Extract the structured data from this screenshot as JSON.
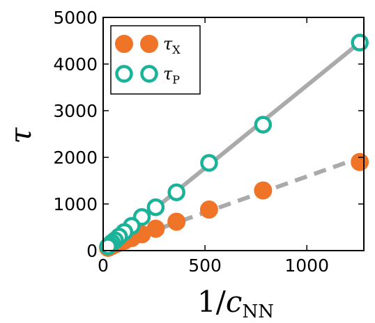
{
  "chart_data": {
    "type": "scatter",
    "title": "",
    "xlabel": {
      "main": "1/",
      "var": "c",
      "sub": "NN"
    },
    "ylabel": "τ",
    "xlim": [
      0,
      1280
    ],
    "ylim": [
      0,
      5000
    ],
    "xticks": [
      0,
      500,
      1000
    ],
    "yticks": [
      0,
      1000,
      2000,
      3000,
      4000,
      5000
    ],
    "grid": false,
    "legend_placement": "top-left",
    "series": [
      {
        "name": "τX",
        "label_main": "τ",
        "label_sub": "X",
        "marker": "filled-circle",
        "color": "#f07428",
        "x": [
          1260,
          785,
          520,
          360,
          258,
          190,
          140,
          104,
          78,
          58,
          43,
          32,
          24
        ],
        "y": [
          1900,
          1290,
          880,
          620,
          470,
          350,
          270,
          210,
          165,
          130,
          100,
          80,
          60
        ],
        "fit": {
          "style": "dashed",
          "color": "#aaaaaa",
          "x": [
            100,
            1260
          ],
          "y": [
            200,
            1990
          ]
        }
      },
      {
        "name": "τP",
        "label_main": "τ",
        "label_sub": "P",
        "marker": "open-circle",
        "color": "#1ab39a",
        "x": [
          1260,
          785,
          520,
          360,
          258,
          190,
          140,
          104,
          78,
          58,
          43,
          32,
          24
        ],
        "y": [
          4460,
          2700,
          1880,
          1250,
          930,
          720,
          530,
          400,
          300,
          220,
          170,
          120,
          90
        ],
        "fit": {
          "style": "solid",
          "color": "#aaaaaa",
          "x": [
            0,
            1280
          ],
          "y": [
            0,
            4530
          ]
        }
      }
    ]
  }
}
